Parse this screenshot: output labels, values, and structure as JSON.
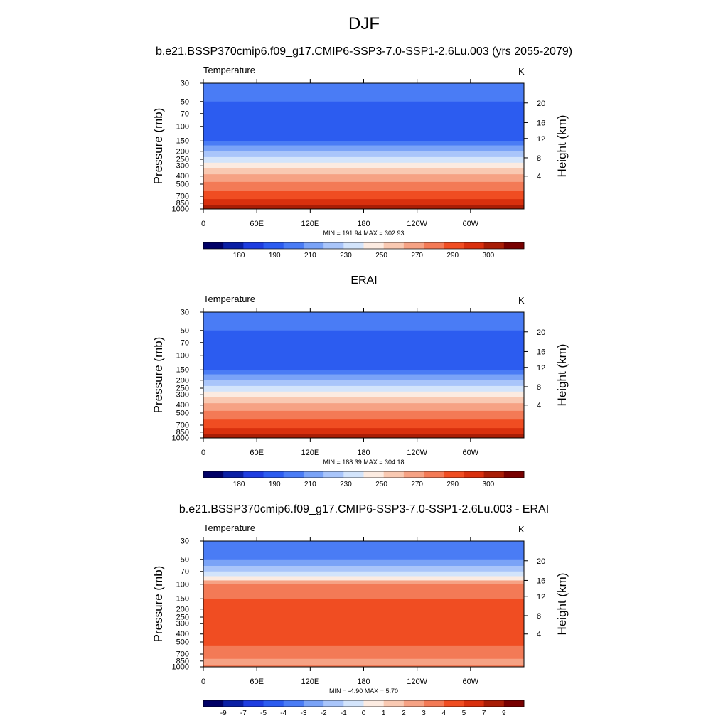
{
  "figure": {
    "title": "DJF"
  },
  "chart_data": [
    {
      "type": "heatmap",
      "title": "b.e21.BSSP370cmip6.f09_g17.CMIP6-SSP3-7.0-SSP1-2.6Lu.003 (yrs 2055-2079)",
      "left_label": "Temperature",
      "right_label": "K",
      "ylabel": "Pressure (mb)",
      "ylabel_right": "Height (km)",
      "y_ticks": [
        "30",
        "50",
        "70",
        "100",
        "150",
        "200",
        "250",
        "300",
        "400",
        "500",
        "700",
        "850",
        "1000"
      ],
      "y_ticks_right": [
        "20",
        "16",
        "12",
        "8",
        "4"
      ],
      "x_ticks": [
        "0",
        "60E",
        "120E",
        "180",
        "120W",
        "60W"
      ],
      "stats": "MIN = 191.94  MAX = 302.93",
      "colorbar_labels": [
        "180",
        "190",
        "210",
        "230",
        "250",
        "270",
        "290",
        "300"
      ],
      "colors": [
        "#000066",
        "#0a1fa4",
        "#1e3de0",
        "#2c5cf0",
        "#4a7cf5",
        "#7aa3f7",
        "#a9c5fa",
        "#d3e4fb",
        "#fcebe1",
        "#f9c9b2",
        "#f6a284",
        "#f37a56",
        "#f04d22",
        "#d9300e",
        "#a81d06",
        "#780000"
      ],
      "bands": [
        {
          "p": 30,
          "level": 4
        },
        {
          "p": 42,
          "level": 4
        },
        {
          "p": 50,
          "level": 3
        },
        {
          "p": 130,
          "level": 3
        },
        {
          "p": 150,
          "level": 4
        },
        {
          "p": 170,
          "level": 5
        },
        {
          "p": 200,
          "level": 6
        },
        {
          "p": 235,
          "level": 7
        },
        {
          "p": 275,
          "level": 8
        },
        {
          "p": 320,
          "level": 9
        },
        {
          "p": 380,
          "level": 10
        },
        {
          "p": 470,
          "level": 11
        },
        {
          "p": 600,
          "level": 12
        },
        {
          "p": 760,
          "level": 13
        },
        {
          "p": 900,
          "level": 14
        },
        {
          "p": 990,
          "level": 15
        }
      ]
    },
    {
      "type": "heatmap",
      "title": "ERAI",
      "left_label": "Temperature",
      "right_label": "K",
      "ylabel": "Pressure (mb)",
      "ylabel_right": "Height (km)",
      "y_ticks": [
        "30",
        "50",
        "70",
        "100",
        "150",
        "200",
        "250",
        "300",
        "400",
        "500",
        "700",
        "850",
        "1000"
      ],
      "y_ticks_right": [
        "20",
        "16",
        "12",
        "8",
        "4"
      ],
      "x_ticks": [
        "0",
        "60E",
        "120E",
        "180",
        "120W",
        "60W"
      ],
      "stats": "MIN = 188.39  MAX = 304.18",
      "colorbar_labels": [
        "180",
        "190",
        "210",
        "230",
        "250",
        "270",
        "290",
        "300"
      ],
      "colors": [
        "#000066",
        "#0a1fa4",
        "#1e3de0",
        "#2c5cf0",
        "#4a7cf5",
        "#7aa3f7",
        "#a9c5fa",
        "#d3e4fb",
        "#fcebe1",
        "#f9c9b2",
        "#f6a284",
        "#f37a56",
        "#f04d22",
        "#d9300e",
        "#a81d06",
        "#780000"
      ],
      "bands": [
        {
          "p": 30,
          "level": 4
        },
        {
          "p": 40,
          "level": 4
        },
        {
          "p": 50,
          "level": 3
        },
        {
          "p": 130,
          "level": 3
        },
        {
          "p": 150,
          "level": 4
        },
        {
          "p": 170,
          "level": 5
        },
        {
          "p": 200,
          "level": 6
        },
        {
          "p": 235,
          "level": 7
        },
        {
          "p": 275,
          "level": 8
        },
        {
          "p": 320,
          "level": 9
        },
        {
          "p": 380,
          "level": 10
        },
        {
          "p": 470,
          "level": 11
        },
        {
          "p": 600,
          "level": 12
        },
        {
          "p": 760,
          "level": 13
        },
        {
          "p": 900,
          "level": 14
        },
        {
          "p": 990,
          "level": 15
        }
      ]
    },
    {
      "type": "heatmap",
      "title": "b.e21.BSSP370cmip6.f09_g17.CMIP6-SSP3-7.0-SSP1-2.6Lu.003 - ERAI",
      "left_label": "Temperature",
      "right_label": "K",
      "ylabel": "Pressure (mb)",
      "ylabel_right": "Height (km)",
      "y_ticks": [
        "30",
        "50",
        "70",
        "100",
        "150",
        "200",
        "250",
        "300",
        "400",
        "500",
        "700",
        "850",
        "1000"
      ],
      "y_ticks_right": [
        "20",
        "16",
        "12",
        "8",
        "4"
      ],
      "x_ticks": [
        "0",
        "60E",
        "120E",
        "180",
        "120W",
        "60W"
      ],
      "stats": "MIN =  -4.90  MAX =   5.70",
      "colorbar_labels": [
        "-9",
        "-7",
        "-5",
        "-4",
        "-3",
        "-2",
        "-1",
        "0",
        "1",
        "2",
        "3",
        "4",
        "5",
        "7",
        "9"
      ],
      "colors": [
        "#000066",
        "#0a1fa4",
        "#1e3de0",
        "#2c5cf0",
        "#4a7cf5",
        "#7aa3f7",
        "#a9c5fa",
        "#d3e4fb",
        "#fcebe1",
        "#f9c9b2",
        "#f6a284",
        "#f37a56",
        "#f04d22",
        "#d9300e",
        "#a81d06",
        "#780000"
      ],
      "bands": [
        {
          "p": 30,
          "level": 4
        },
        {
          "p": 50,
          "level": 5
        },
        {
          "p": 60,
          "level": 6
        },
        {
          "p": 70,
          "level": 7
        },
        {
          "p": 80,
          "level": 8
        },
        {
          "p": 90,
          "level": 10
        },
        {
          "p": 100,
          "level": 11
        },
        {
          "p": 150,
          "level": 12
        },
        {
          "p": 550,
          "level": 11
        },
        {
          "p": 800,
          "level": 10
        },
        {
          "p": 950,
          "level": 11
        }
      ]
    }
  ]
}
